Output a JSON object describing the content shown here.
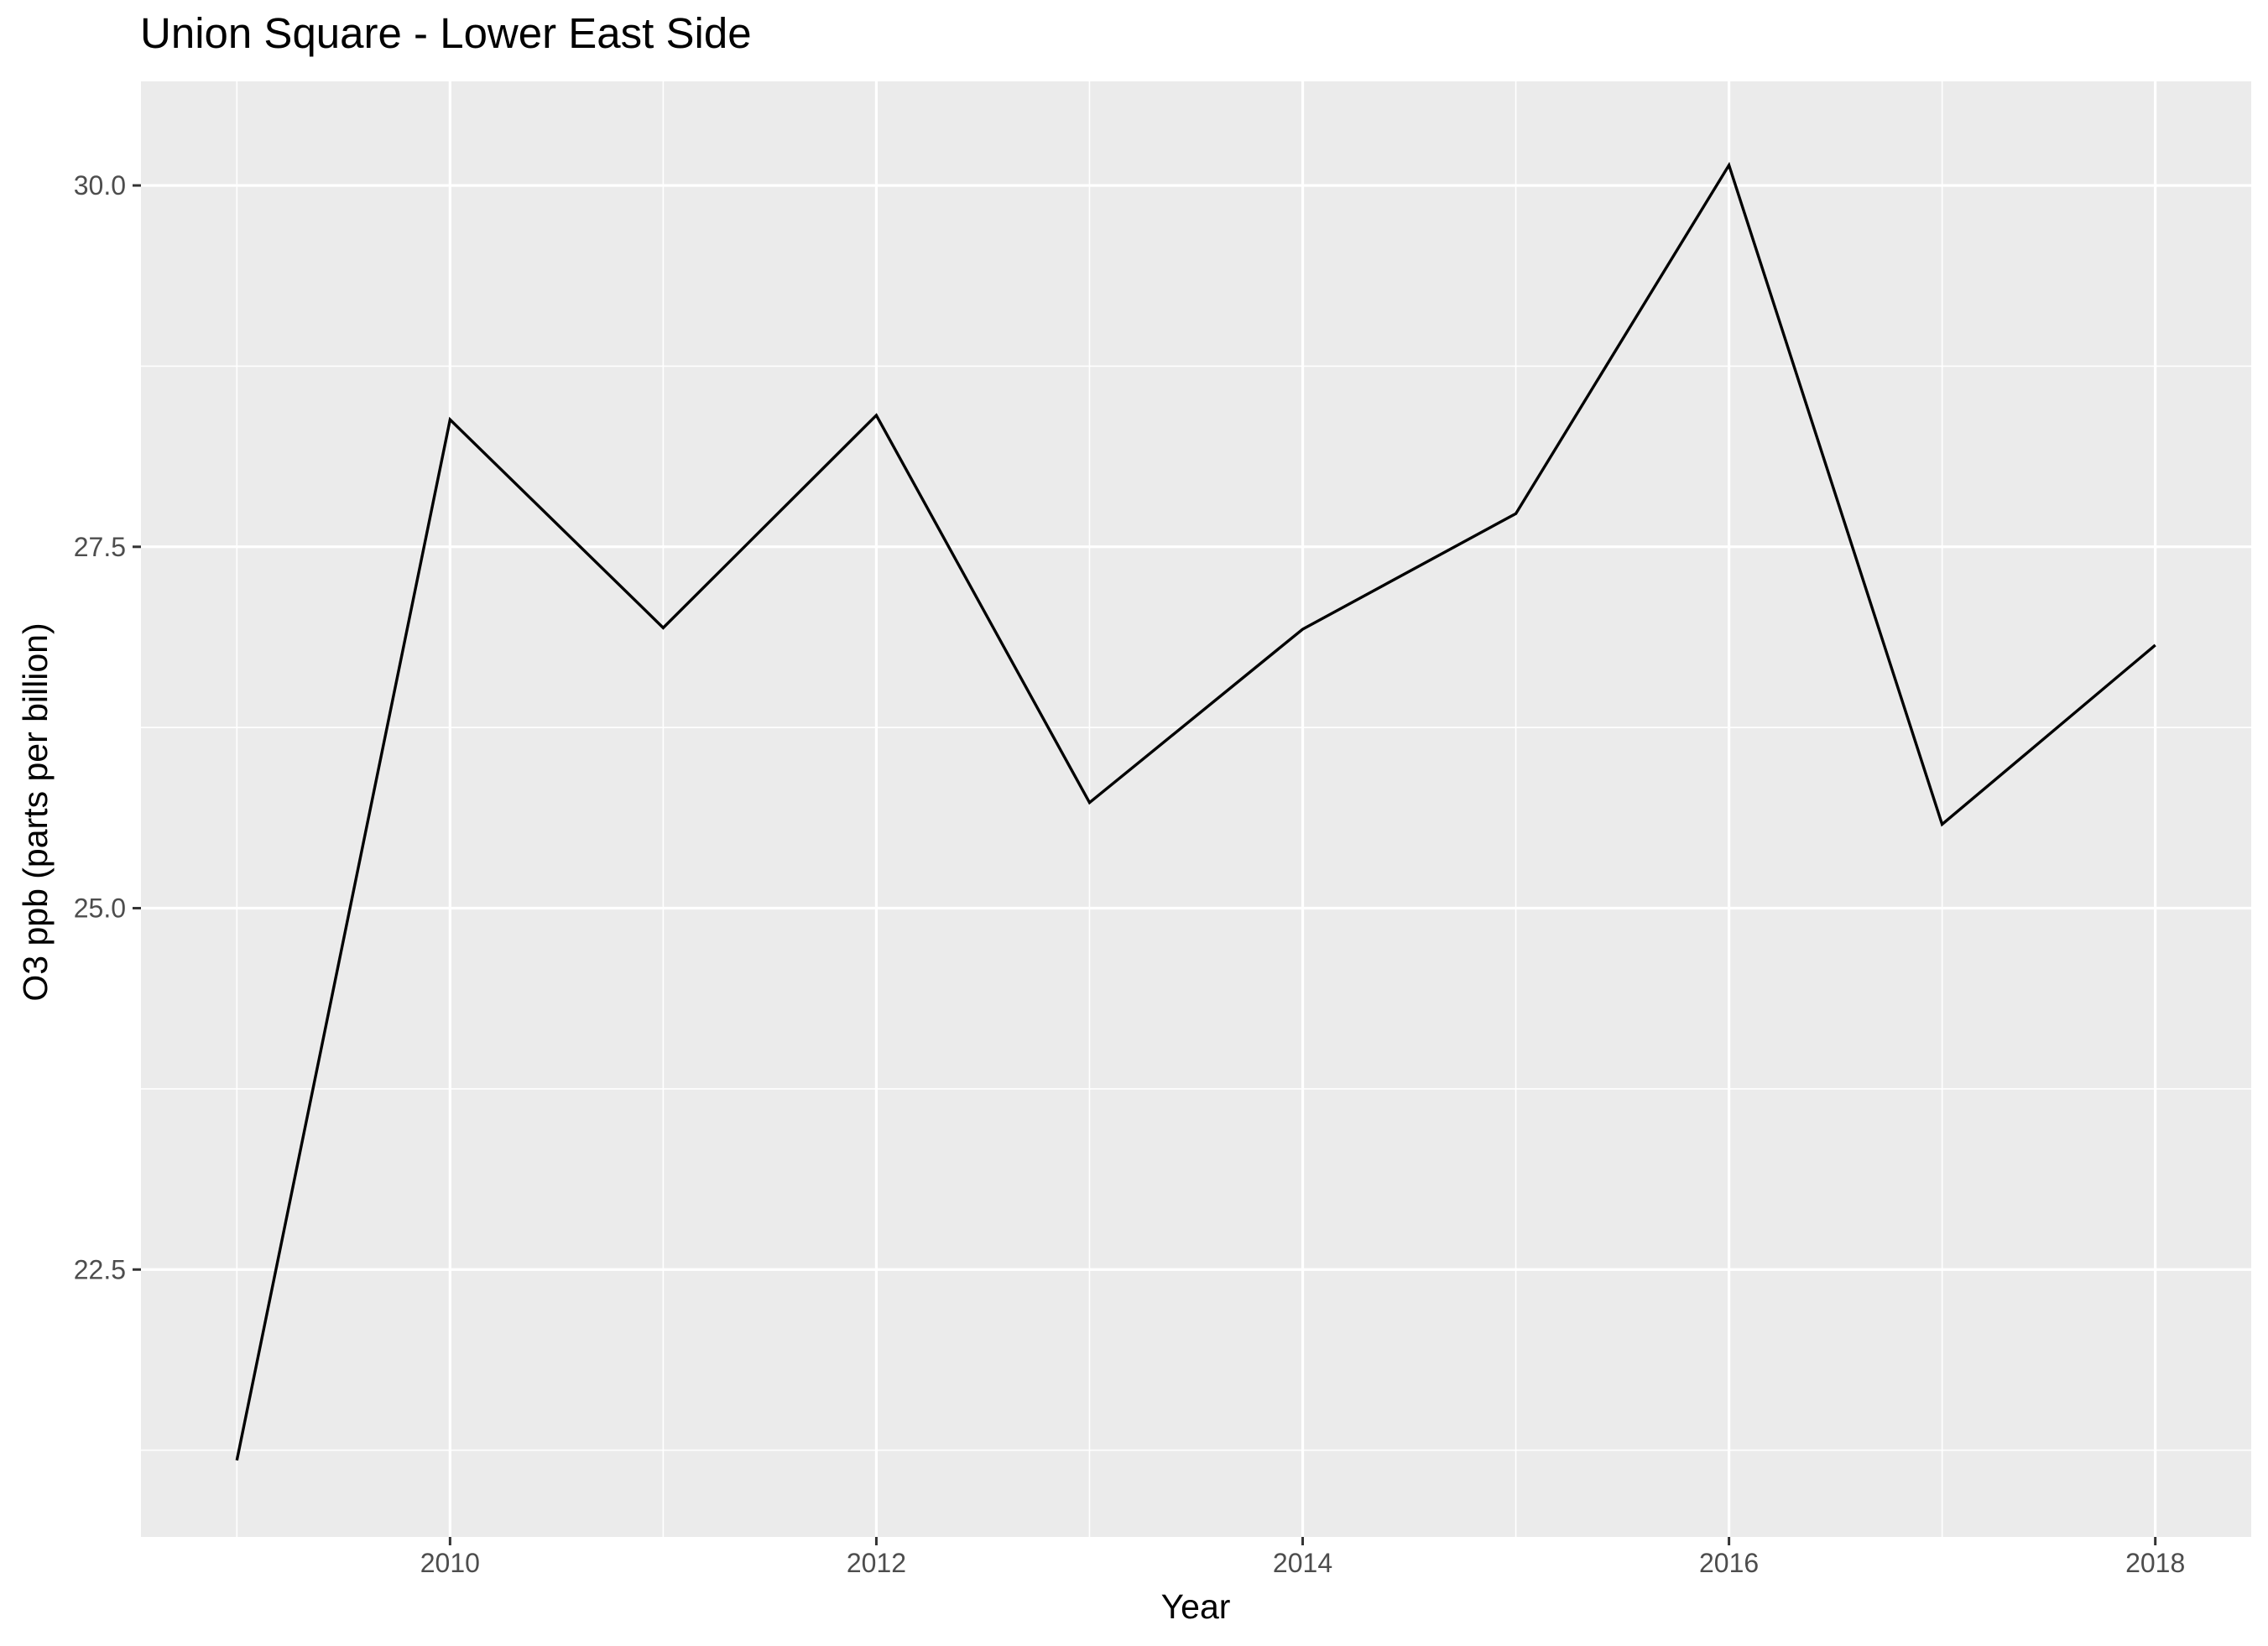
{
  "chart_data": {
    "type": "line",
    "title": "Union Square - Lower East Side",
    "xlabel": "Year",
    "ylabel": "O3 ppb (parts per billion)",
    "x": [
      2009,
      2010,
      2011,
      2012,
      2013,
      2014,
      2015,
      2016,
      2017,
      2018
    ],
    "series": [
      {
        "values": [
          21.18,
          28.38,
          26.94,
          28.41,
          25.73,
          26.93,
          27.73,
          30.14,
          25.58,
          26.82
        ]
      }
    ],
    "xlim": [
      2008.55,
      2018.45
    ],
    "ylim": [
      20.65,
      30.72
    ],
    "x_ticks": [
      2010,
      2012,
      2014,
      2016,
      2018
    ],
    "x_tick_labels": [
      "2010",
      "2012",
      "2014",
      "2016",
      "2018"
    ],
    "y_ticks": [
      22.5,
      25.0,
      27.5,
      30.0
    ],
    "y_tick_labels": [
      "22.5",
      "25.0",
      "27.5",
      "30.0"
    ],
    "grid": true,
    "colors": {
      "panel_background": "#ebebeb",
      "grid_major": "#ffffff",
      "line": "#000000",
      "tick_text": "#4d4d4d",
      "tick_mark": "#333333"
    }
  }
}
